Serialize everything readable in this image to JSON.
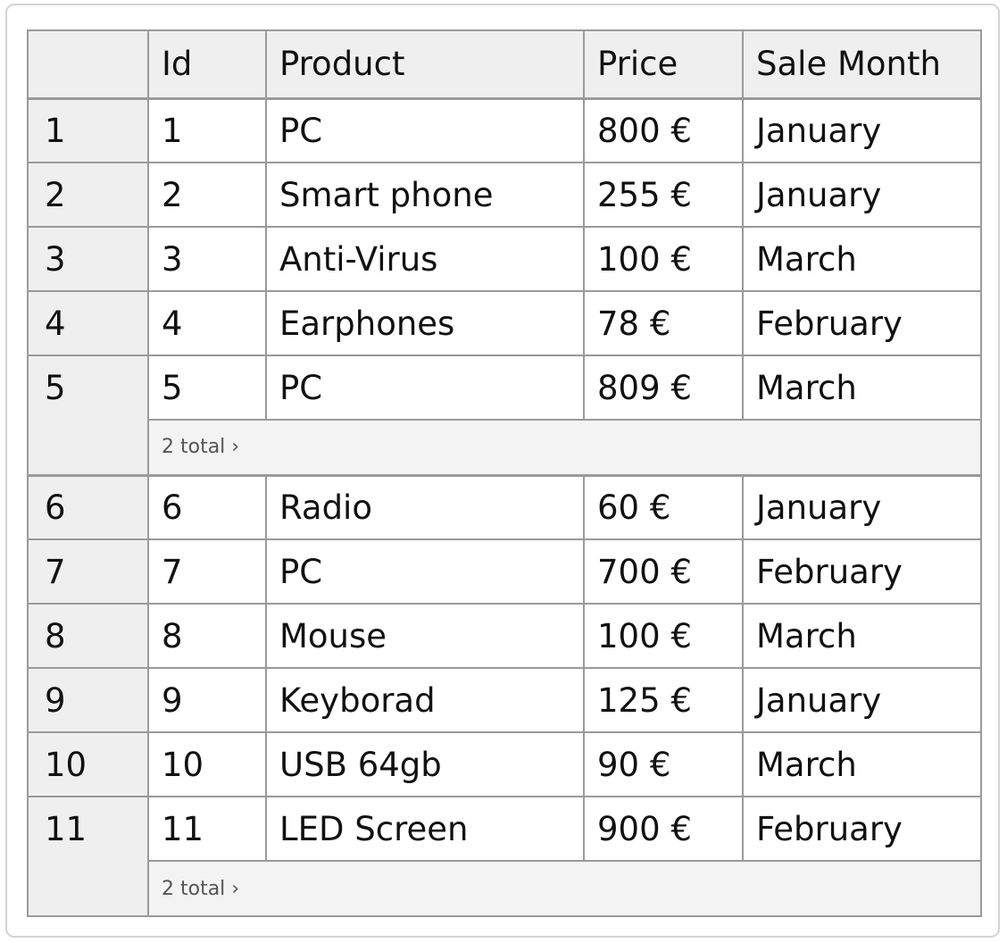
{
  "table": {
    "columns": [
      "Id",
      "Product",
      "Price",
      "Sale Month"
    ],
    "groups": [
      {
        "rows": [
          {
            "num": "1",
            "id": "1",
            "product": "PC",
            "price": "800 €",
            "month": "January"
          },
          {
            "num": "2",
            "id": "2",
            "product": "Smart phone",
            "price": "255 €",
            "month": "January"
          },
          {
            "num": "3",
            "id": "3",
            "product": "Anti-Virus",
            "price": "100 €",
            "month": "March"
          },
          {
            "num": "4",
            "id": "4",
            "product": "Earphones",
            "price": "78 €",
            "month": "February"
          },
          {
            "num": "5",
            "id": "5",
            "product": "PC",
            "price": "809 €",
            "month": "March"
          }
        ],
        "total_label": "2 total ›"
      },
      {
        "rows": [
          {
            "num": "6",
            "id": "6",
            "product": "Radio",
            "price": "60 €",
            "month": "January"
          },
          {
            "num": "7",
            "id": "7",
            "product": "PC",
            "price": "700 €",
            "month": "February"
          },
          {
            "num": "8",
            "id": "8",
            "product": "Mouse",
            "price": "100 €",
            "month": "March"
          },
          {
            "num": "9",
            "id": "9",
            "product": "Keyborad",
            "price": "125 €",
            "month": "January"
          },
          {
            "num": "10",
            "id": "10",
            "product": "USB 64gb",
            "price": "90 €",
            "month": "March"
          },
          {
            "num": "11",
            "id": "11",
            "product": "LED Screen",
            "price": "900 €",
            "month": "February"
          }
        ],
        "total_label": "2 total ›"
      }
    ]
  }
}
